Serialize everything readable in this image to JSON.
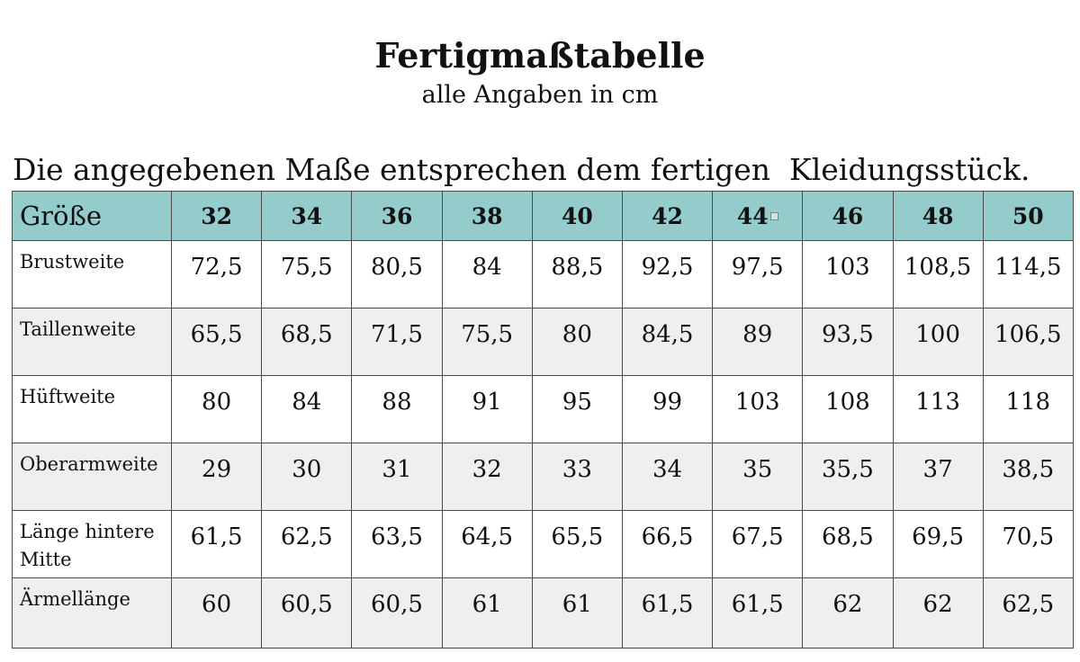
{
  "document": {
    "title": "Fertigmaßtabelle",
    "subtitle": "alle Angaben in cm",
    "intro": "Die angegebenen Maße entsprechen dem fertigen  Kleidungsstück."
  },
  "table": {
    "corner_label": "Größe",
    "header_color": "#93cccb",
    "stripe_color": "#efefef",
    "sizes": [
      "32",
      "34",
      "36",
      "38",
      "40",
      "42",
      "44",
      "46",
      "48",
      "50"
    ],
    "rows": [
      {
        "label": "Brustweite",
        "values": [
          "72,5",
          "75,5",
          "80,5",
          "84",
          "88,5",
          "92,5",
          "97,5",
          "103",
          "108,5",
          "114,5"
        ]
      },
      {
        "label": "Taillenweite",
        "values": [
          "65,5",
          "68,5",
          "71,5",
          "75,5",
          "80",
          "84,5",
          "89",
          "93,5",
          "100",
          "106,5"
        ]
      },
      {
        "label": "Hüftweite",
        "values": [
          "80",
          "84",
          "88",
          "91",
          "95",
          "99",
          "103",
          "108",
          "113",
          "118"
        ]
      },
      {
        "label": "Oberarmweite",
        "values": [
          "29",
          "30",
          "31",
          "32",
          "33",
          "34",
          "35",
          "35,5",
          "37",
          "38,5"
        ]
      },
      {
        "label": "Länge hintere Mitte",
        "values": [
          "61,5",
          "62,5",
          "63,5",
          "64,5",
          "65,5",
          "66,5",
          "67,5",
          "68,5",
          "69,5",
          "70,5"
        ]
      },
      {
        "label": "Ärmellänge",
        "values": [
          "60",
          "60,5",
          "60,5",
          "61",
          "61",
          "61,5",
          "61,5",
          "62",
          "62",
          "62,5"
        ]
      }
    ]
  }
}
